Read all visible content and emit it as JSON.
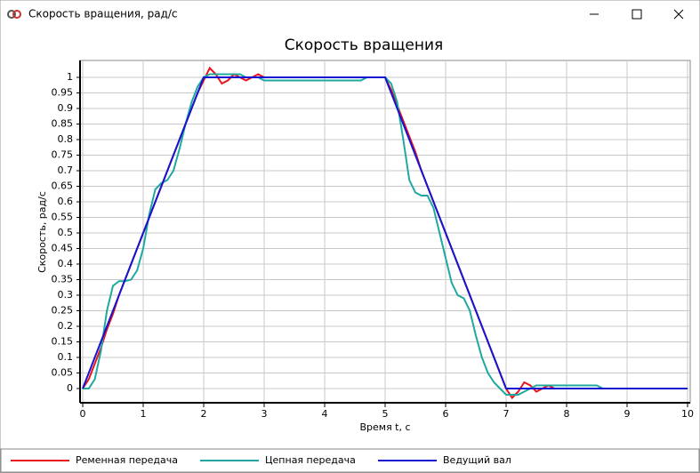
{
  "window_title": "Скорость вращения, рад/с",
  "chart_data": {
    "type": "line",
    "title": "Скорость вращения",
    "xlabel": "Время t, c",
    "ylabel": "Скорость, рад/с",
    "xlim": [
      0,
      10
    ],
    "ylim": [
      -0.05,
      1.05
    ],
    "xticks": [
      0,
      1,
      2,
      3,
      4,
      5,
      6,
      7,
      8,
      9,
      10
    ],
    "yticks": [
      0,
      0.05,
      0.1,
      0.15,
      0.2,
      0.25,
      0.3,
      0.35,
      0.4,
      0.45,
      0.5,
      0.55,
      0.6,
      0.65,
      0.7,
      0.75,
      0.8,
      0.85,
      0.9,
      0.95,
      1
    ],
    "grid": true,
    "legend": "bottom",
    "x": [
      0,
      0.1,
      0.2,
      0.3,
      0.4,
      0.5,
      0.6,
      0.7,
      0.8,
      0.9,
      1,
      1.1,
      1.2,
      1.3,
      1.4,
      1.5,
      1.6,
      1.7,
      1.8,
      1.9,
      2,
      2.1,
      2.2,
      2.3,
      2.4,
      2.5,
      2.6,
      2.7,
      2.8,
      2.9,
      3,
      3.1,
      3.2,
      3.3,
      3.4,
      3.5,
      3.6,
      3.7,
      3.8,
      3.9,
      4,
      4.1,
      4.2,
      4.3,
      4.4,
      4.5,
      4.6,
      4.7,
      4.8,
      4.9,
      5,
      5.1,
      5.2,
      5.3,
      5.4,
      5.5,
      5.6,
      5.7,
      5.8,
      5.9,
      6,
      6.1,
      6.2,
      6.3,
      6.4,
      6.5,
      6.6,
      6.7,
      6.8,
      6.9,
      7,
      7.1,
      7.2,
      7.3,
      7.4,
      7.5,
      7.6,
      7.7,
      7.8,
      7.9,
      8,
      8.1,
      8.2,
      8.3,
      8.4,
      8.5,
      8.6,
      8.7,
      8.8,
      8.9,
      9,
      9.1,
      9.2,
      9.3,
      9.4,
      9.5,
      9.6,
      9.7,
      9.8,
      9.9,
      10
    ],
    "series": [
      {
        "name": "Ременная передача",
        "color": "#e8141e",
        "values": [
          0,
          0.03,
          0.08,
          0.13,
          0.19,
          0.24,
          0.3,
          0.35,
          0.4,
          0.45,
          0.5,
          0.55,
          0.6,
          0.65,
          0.7,
          0.75,
          0.8,
          0.85,
          0.9,
          0.95,
          0.99,
          1.03,
          1.01,
          0.98,
          0.99,
          1.01,
          1,
          0.99,
          1,
          1.01,
          1,
          1,
          1,
          1,
          1,
          1,
          1,
          1,
          1,
          1,
          1,
          1,
          1,
          1,
          1,
          1,
          1,
          1,
          1,
          1,
          1,
          0.96,
          0.91,
          0.86,
          0.81,
          0.76,
          0.7,
          0.65,
          0.6,
          0.55,
          0.5,
          0.45,
          0.4,
          0.35,
          0.3,
          0.25,
          0.2,
          0.15,
          0.1,
          0.05,
          0,
          -0.03,
          -0.01,
          0.02,
          0.01,
          -0.01,
          0,
          0.01,
          0,
          0,
          0,
          0,
          0,
          0,
          0,
          0,
          0,
          0,
          0,
          0,
          0,
          0,
          0,
          0,
          0,
          0,
          0,
          0,
          0,
          0,
          0
        ]
      },
      {
        "name": "Цепная передача",
        "color": "#20a8a0",
        "values": [
          0,
          0,
          0.03,
          0.12,
          0.25,
          0.33,
          0.345,
          0.345,
          0.35,
          0.38,
          0.45,
          0.56,
          0.64,
          0.66,
          0.67,
          0.7,
          0.77,
          0.85,
          0.92,
          0.97,
          1,
          1.01,
          1.01,
          1.01,
          1.01,
          1.01,
          1.01,
          1,
          1,
          1,
          0.99,
          0.99,
          0.99,
          0.99,
          0.99,
          0.99,
          0.99,
          0.99,
          0.99,
          0.99,
          0.99,
          0.99,
          0.99,
          0.99,
          0.99,
          0.99,
          0.99,
          1,
          1,
          1,
          1,
          0.98,
          0.92,
          0.8,
          0.67,
          0.63,
          0.62,
          0.62,
          0.58,
          0.5,
          0.42,
          0.34,
          0.3,
          0.29,
          0.25,
          0.17,
          0.1,
          0.05,
          0.02,
          0,
          -0.02,
          -0.02,
          -0.02,
          -0.01,
          0,
          0.01,
          0.01,
          0.01,
          0.01,
          0.01,
          0.01,
          0.01,
          0.01,
          0.01,
          0.01,
          0.01,
          0,
          0,
          0,
          0,
          0,
          0,
          0,
          0,
          0,
          0,
          0,
          0,
          0,
          0,
          0
        ]
      },
      {
        "name": "Ведущий вал",
        "color": "#1414d2",
        "values": [
          0,
          0.05,
          0.1,
          0.15,
          0.2,
          0.25,
          0.3,
          0.35,
          0.4,
          0.45,
          0.5,
          0.55,
          0.6,
          0.65,
          0.7,
          0.75,
          0.8,
          0.85,
          0.9,
          0.95,
          1,
          1,
          1,
          1,
          1,
          1,
          1,
          1,
          1,
          1,
          1,
          1,
          1,
          1,
          1,
          1,
          1,
          1,
          1,
          1,
          1,
          1,
          1,
          1,
          1,
          1,
          1,
          1,
          1,
          1,
          1,
          0.95,
          0.9,
          0.85,
          0.8,
          0.75,
          0.7,
          0.65,
          0.6,
          0.55,
          0.5,
          0.45,
          0.4,
          0.35,
          0.3,
          0.25,
          0.2,
          0.15,
          0.1,
          0.05,
          0,
          0,
          0,
          0,
          0,
          0,
          0,
          0,
          0,
          0,
          0,
          0,
          0,
          0,
          0,
          0,
          0,
          0,
          0,
          0,
          0,
          0,
          0,
          0,
          0,
          0,
          0,
          0,
          0,
          0,
          0
        ]
      }
    ]
  }
}
